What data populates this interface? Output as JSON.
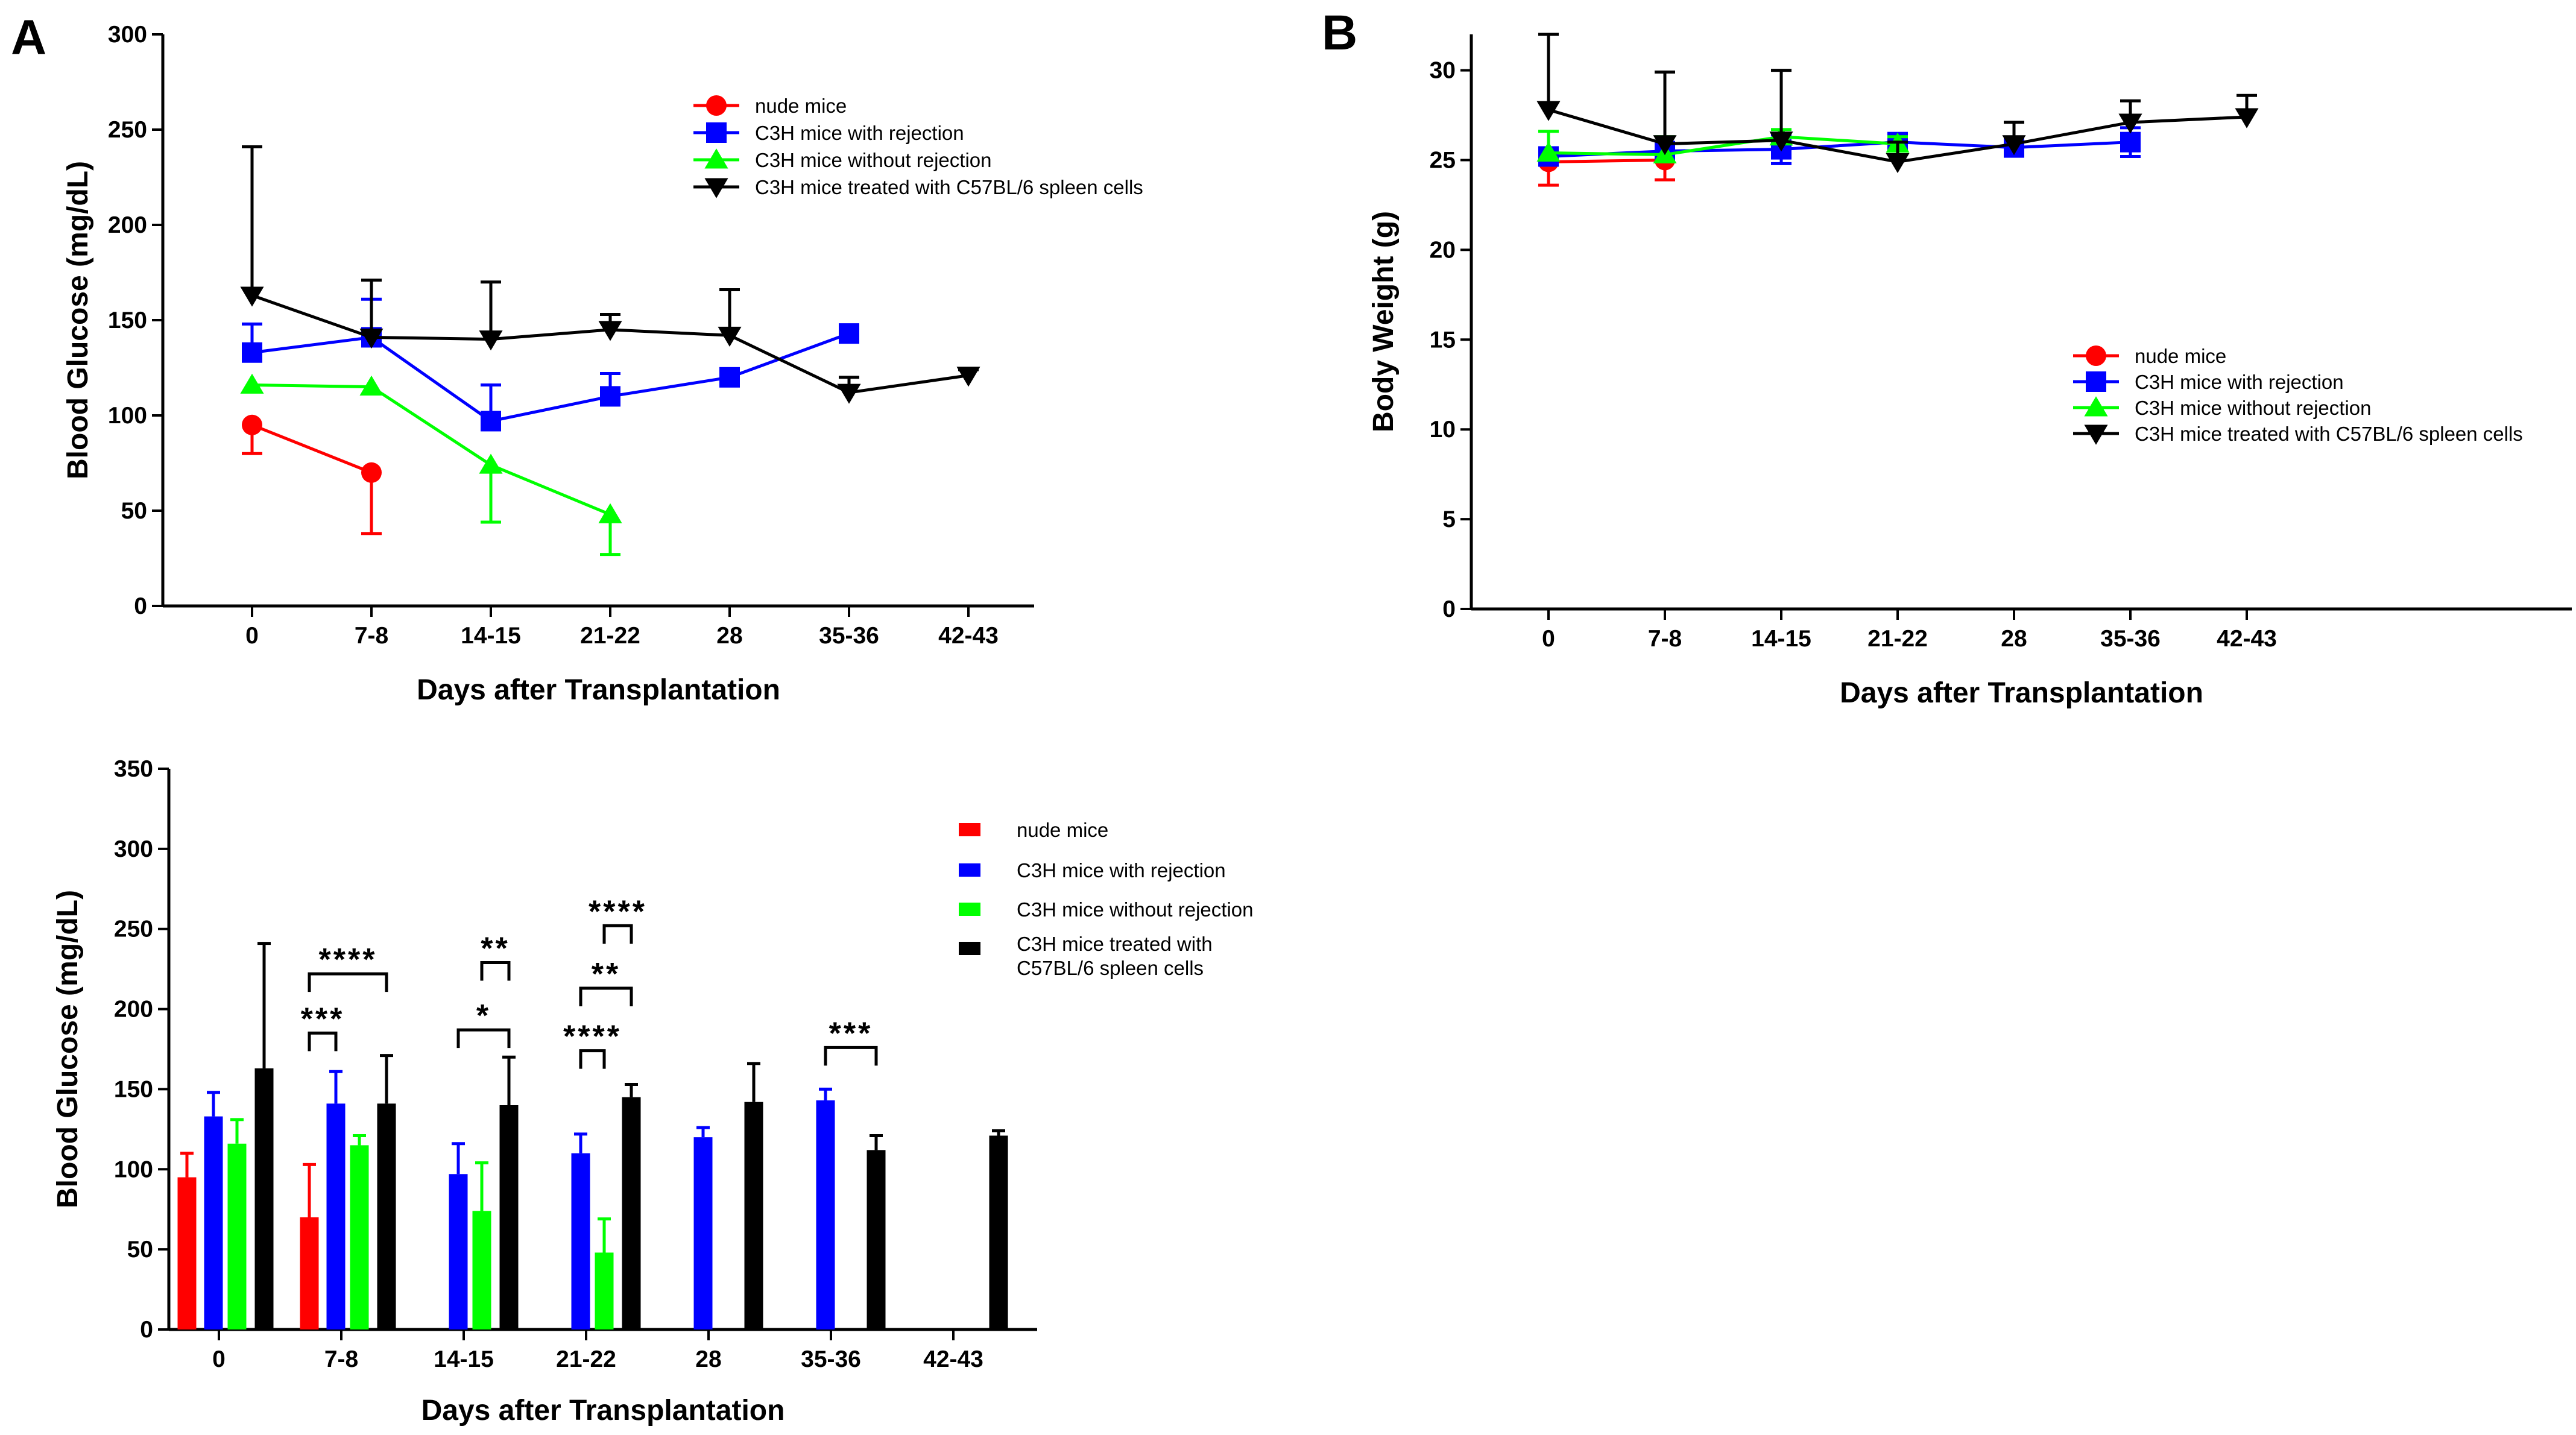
{
  "panel_labels": [
    "A",
    "B"
  ],
  "chart_data": [
    {
      "type": "line",
      "panel": "A",
      "title": "",
      "xlabel": "Days after Transplantation",
      "ylabel": "Blood Glucose (mg/dL)",
      "categories": [
        "0",
        "7-8",
        "14-15",
        "21-22",
        "28",
        "35-36",
        "42-43"
      ],
      "ylim": [
        0,
        300
      ],
      "yticks": [
        "0",
        "50",
        "100",
        "150",
        "200",
        "250",
        "300"
      ],
      "legend_position": "top-right",
      "series": [
        {
          "name": "nude mice",
          "color": "#ff0000",
          "marker": "circle",
          "values": [
            95,
            70,
            null,
            null,
            null,
            null,
            null
          ],
          "err": [
            15,
            32,
            null,
            null,
            null,
            null,
            null
          ],
          "err_dir": "down"
        },
        {
          "name": "C3H mice with rejection",
          "color": "#0000ff",
          "marker": "square",
          "values": [
            133,
            141,
            97,
            110,
            120,
            143,
            null
          ],
          "err": [
            15,
            20,
            19,
            12,
            0,
            0,
            null
          ],
          "err_dir": "up"
        },
        {
          "name": "C3H mice without rejection",
          "color": "#00ff00",
          "marker": "triangle-up",
          "values": [
            116,
            115,
            74,
            48,
            null,
            null,
            null
          ],
          "err": [
            0,
            0,
            30,
            21,
            null,
            null,
            null
          ],
          "err_dir": "down"
        },
        {
          "name": "C3H mice treated with C57BL/6 spleen cells",
          "color": "#000000",
          "marker": "triangle-down",
          "values": [
            163,
            141,
            140,
            145,
            142,
            112,
            121
          ],
          "err": [
            78,
            30,
            30,
            8,
            24,
            8,
            3
          ],
          "err_dir": "up"
        }
      ]
    },
    {
      "type": "line",
      "panel": "B",
      "title": "",
      "xlabel": "Days after Transplantation",
      "ylabel": "Body Weight (g)",
      "categories": [
        "0",
        "7-8",
        "14-15",
        "21-22",
        "28",
        "35-36",
        "42-43"
      ],
      "ylim": [
        0,
        32
      ],
      "yticks": [
        "0",
        "5",
        "10",
        "15",
        "20",
        "25",
        "30"
      ],
      "legend_position": "center-right",
      "series": [
        {
          "name": "nude mice",
          "color": "#ff0000",
          "marker": "circle",
          "values": [
            24.9,
            25.0,
            null,
            null,
            null,
            null,
            null
          ],
          "err": [
            1.3,
            1.1,
            null,
            null,
            null,
            null,
            null
          ],
          "err_dir": "down"
        },
        {
          "name": "C3H mice with rejection",
          "color": "#0000ff",
          "marker": "square",
          "values": [
            25.2,
            25.5,
            25.6,
            26.0,
            25.7,
            26.0,
            null
          ],
          "err": [
            0.3,
            0.3,
            0.8,
            0.4,
            0.3,
            0.8,
            null
          ],
          "err_dir": "both"
        },
        {
          "name": "C3H mice without rejection",
          "color": "#00ff00",
          "marker": "triangle-up",
          "values": [
            25.4,
            25.3,
            26.3,
            25.9,
            null,
            null,
            null
          ],
          "err": [
            1.2,
            1.0,
            0.4,
            0.4,
            null,
            null,
            null
          ],
          "err_dir": "up"
        },
        {
          "name": "C3H mice treated with C57BL/6 spleen cells",
          "color": "#000000",
          "marker": "triangle-down",
          "values": [
            27.8,
            25.9,
            26.1,
            24.9,
            25.9,
            27.1,
            27.4
          ],
          "err": [
            4.2,
            4.0,
            3.9,
            1.1,
            1.2,
            1.2,
            1.2
          ],
          "err_dir": "up"
        }
      ]
    },
    {
      "type": "bar",
      "panel": "",
      "title": "",
      "xlabel": "Days after Transplantation",
      "ylabel": "Blood Glucose (mg/dL)",
      "categories": [
        "0",
        "7-8",
        "14-15",
        "21-22",
        "28",
        "35-36",
        "42-43"
      ],
      "ylim": [
        0,
        350
      ],
      "yticks": [
        "0",
        "50",
        "100",
        "150",
        "200",
        "250",
        "300",
        "350"
      ],
      "legend_position": "top-right",
      "series": [
        {
          "name": "nude mice",
          "legend_lines": [
            "nude mice"
          ],
          "color": "#ff0000",
          "values": [
            95,
            70,
            null,
            null,
            null,
            null,
            null
          ],
          "err": [
            15,
            33,
            null,
            null,
            null,
            null,
            null
          ]
        },
        {
          "name": "C3H mice with rejection",
          "legend_lines": [
            "C3H mice with rejection"
          ],
          "color": "#0000ff",
          "values": [
            133,
            141,
            97,
            110,
            120,
            143,
            null
          ],
          "err": [
            15,
            20,
            19,
            12,
            6,
            7,
            null
          ]
        },
        {
          "name": "C3H mice without rejection",
          "legend_lines": [
            "C3H mice without rejection"
          ],
          "color": "#00ff00",
          "values": [
            116,
            115,
            74,
            48,
            null,
            null,
            null
          ],
          "err": [
            15,
            6,
            30,
            21,
            null,
            null,
            null
          ]
        },
        {
          "name": "C3H mice treated with C57BL/6 spleen cells",
          "legend_lines": [
            "C3H mice treated with",
            "C57BL/6 spleen cells"
          ],
          "color": "#000000",
          "values": [
            163,
            141,
            140,
            145,
            142,
            112,
            121
          ],
          "err": [
            78,
            30,
            30,
            8,
            24,
            9,
            3
          ]
        }
      ],
      "significance": [
        {
          "label": "***",
          "category": "7-8",
          "from_series": 0,
          "to_series": 1,
          "level": 185
        },
        {
          "label": "****",
          "category": "7-8",
          "from_series": 0,
          "to_series": 3,
          "level": 222
        },
        {
          "label": "*",
          "category": "14-15",
          "from_series": 1,
          "to_series": 3,
          "level": 187
        },
        {
          "label": "**",
          "category": "14-15",
          "from_series": 2,
          "to_series": 3,
          "level": 229
        },
        {
          "label": "****",
          "category": "21-22",
          "from_series": 1,
          "to_series": 2,
          "level": 174
        },
        {
          "label": "**",
          "category": "21-22",
          "from_series": 1,
          "to_series": 3,
          "level": 213
        },
        {
          "label": "****",
          "category": "21-22",
          "from_series": 2,
          "to_series": 3,
          "level": 252
        },
        {
          "label": "***",
          "category": "35-36",
          "from_series": 1,
          "to_series": 3,
          "level": 176
        }
      ]
    }
  ]
}
